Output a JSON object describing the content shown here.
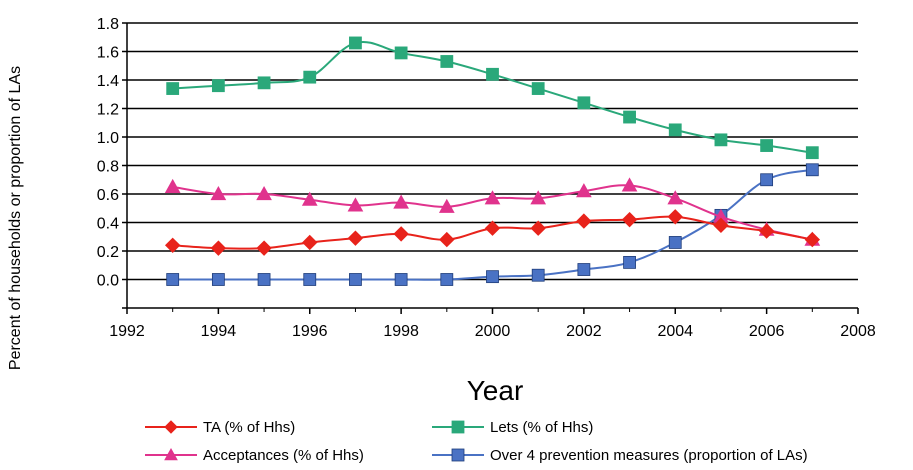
{
  "chart_data": {
    "type": "line",
    "title": "",
    "xlabel": "Year",
    "ylabel": "Percent of households or proportion of LAs",
    "xlim": [
      1992,
      2008
    ],
    "ylim": [
      -0.2,
      1.8
    ],
    "x_ticks": [
      "1992",
      "1994",
      "1996",
      "1998",
      "2000",
      "2002",
      "2004",
      "2006",
      "2008"
    ],
    "y_ticks": [
      "0.0",
      "0.2",
      "0.4",
      "0.6",
      "0.8",
      "1.0",
      "1.2",
      "1.4",
      "1.6",
      "1.8"
    ],
    "gridlines": "horizontal",
    "legend_position": "bottom",
    "series": [
      {
        "name": "TA (% of Hhs)",
        "color": "#e8231b",
        "marker": "diamond",
        "x": [
          1993,
          1994,
          1995,
          1996,
          1997,
          1998,
          1999,
          2000,
          2001,
          2002,
          2003,
          2004,
          2005,
          2006,
          2007
        ],
        "values": [
          0.24,
          0.22,
          0.22,
          0.26,
          0.29,
          0.32,
          0.28,
          0.36,
          0.36,
          0.41,
          0.42,
          0.44,
          0.38,
          0.34,
          0.28
        ]
      },
      {
        "name": "Lets (% of Hhs)",
        "color": "#2aa87a",
        "marker": "square",
        "x": [
          1993,
          1994,
          1995,
          1996,
          1997,
          1998,
          1999,
          2000,
          2001,
          2002,
          2003,
          2004,
          2005,
          2006,
          2007
        ],
        "values": [
          1.34,
          1.36,
          1.38,
          1.42,
          1.66,
          1.59,
          1.53,
          1.44,
          1.34,
          1.24,
          1.14,
          1.05,
          0.98,
          0.94,
          0.89
        ]
      },
      {
        "name": "Acceptances (% of Hhs)",
        "color": "#e0338d",
        "marker": "triangle",
        "x": [
          1993,
          1994,
          1995,
          1996,
          1997,
          1998,
          1999,
          2000,
          2001,
          2002,
          2003,
          2004,
          2005,
          2006,
          2007
        ],
        "values": [
          0.65,
          0.6,
          0.6,
          0.56,
          0.52,
          0.54,
          0.51,
          0.57,
          0.57,
          0.62,
          0.66,
          0.57,
          0.44,
          0.35,
          0.28
        ]
      },
      {
        "name": "Over 4 prevention measures (proportion of LAs)",
        "color": "#4a72c4",
        "marker": "square",
        "x": [
          1993,
          1994,
          1995,
          1996,
          1997,
          1998,
          1999,
          2000,
          2001,
          2002,
          2003,
          2004,
          2005,
          2006,
          2007
        ],
        "values": [
          0.0,
          0.0,
          0.0,
          0.0,
          0.0,
          0.0,
          0.0,
          0.02,
          0.03,
          0.07,
          0.12,
          0.26,
          0.45,
          0.7,
          0.77
        ]
      }
    ]
  }
}
